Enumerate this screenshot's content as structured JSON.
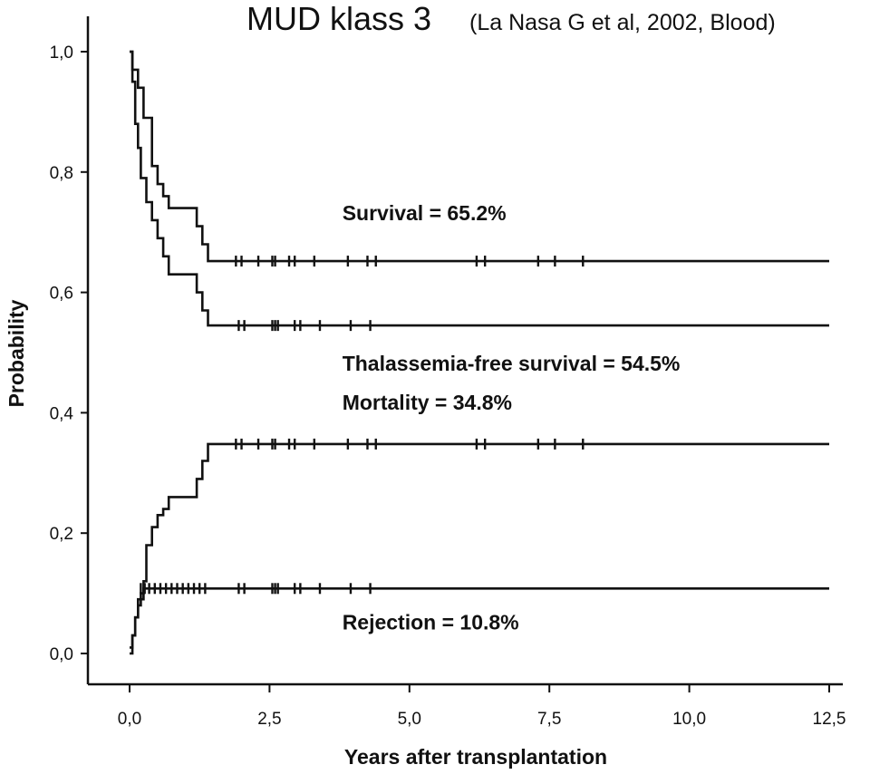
{
  "chart_data": {
    "type": "line",
    "title": "MUD klass 3",
    "subtitle": "(La Nasa G et al, 2002, Blood)",
    "xlabel": "Years after transplantation",
    "ylabel": "Probability",
    "xlim": [
      0,
      12.5
    ],
    "ylim": [
      0,
      1.0
    ],
    "x_ticks": [
      "0,0",
      "2,5",
      "5,0",
      "7,5",
      "10,0",
      "12,5"
    ],
    "y_ticks": [
      "0,0",
      "0,2",
      "0,4",
      "0,6",
      "0,8",
      "1,0"
    ],
    "grid": false,
    "legend": "none",
    "annotations": [
      {
        "text": "Survival = 65.2%",
        "x": 3.8,
        "y": 0.72
      },
      {
        "text": "Thalassemia-free survival = 54.5%",
        "x": 3.8,
        "y": 0.47
      },
      {
        "text": "Mortality = 34.8%",
        "x": 3.8,
        "y": 0.405
      },
      {
        "text": "Rejection = 10.8%",
        "x": 3.8,
        "y": 0.04
      }
    ],
    "series": [
      {
        "name": "Survival",
        "points": [
          [
            0,
            1.0
          ],
          [
            0.05,
            0.97
          ],
          [
            0.15,
            0.94
          ],
          [
            0.25,
            0.89
          ],
          [
            0.4,
            0.81
          ],
          [
            0.5,
            0.78
          ],
          [
            0.6,
            0.76
          ],
          [
            0.7,
            0.74
          ],
          [
            1.15,
            0.74
          ],
          [
            1.2,
            0.71
          ],
          [
            1.3,
            0.68
          ],
          [
            1.4,
            0.652
          ],
          [
            12.5,
            0.652
          ]
        ],
        "censor_x": [
          1.9,
          2.0,
          2.3,
          2.55,
          2.6,
          2.85,
          2.95,
          3.3,
          3.9,
          4.25,
          4.4,
          6.2,
          6.35,
          7.3,
          7.6,
          8.1
        ]
      },
      {
        "name": "Thalassemia-free survival",
        "points": [
          [
            0,
            1.0
          ],
          [
            0.05,
            0.95
          ],
          [
            0.1,
            0.88
          ],
          [
            0.15,
            0.84
          ],
          [
            0.2,
            0.79
          ],
          [
            0.3,
            0.75
          ],
          [
            0.4,
            0.72
          ],
          [
            0.5,
            0.69
          ],
          [
            0.6,
            0.66
          ],
          [
            0.7,
            0.63
          ],
          [
            1.1,
            0.63
          ],
          [
            1.2,
            0.6
          ],
          [
            1.3,
            0.57
          ],
          [
            1.4,
            0.545
          ],
          [
            12.5,
            0.545
          ]
        ],
        "censor_x": [
          1.95,
          2.05,
          2.55,
          2.6,
          2.65,
          2.95,
          3.05,
          3.4,
          3.95,
          4.3
        ]
      },
      {
        "name": "Mortality",
        "points": [
          [
            0,
            0
          ],
          [
            0.05,
            0.03
          ],
          [
            0.1,
            0.06
          ],
          [
            0.15,
            0.09
          ],
          [
            0.25,
            0.12
          ],
          [
            0.3,
            0.18
          ],
          [
            0.4,
            0.21
          ],
          [
            0.5,
            0.23
          ],
          [
            0.6,
            0.24
          ],
          [
            0.7,
            0.26
          ],
          [
            1.15,
            0.26
          ],
          [
            1.2,
            0.29
          ],
          [
            1.3,
            0.32
          ],
          [
            1.4,
            0.348
          ],
          [
            12.5,
            0.348
          ]
        ],
        "censor_x": [
          1.9,
          2.0,
          2.3,
          2.55,
          2.6,
          2.85,
          2.95,
          3.3,
          3.9,
          4.25,
          4.4,
          6.2,
          6.35,
          7.3,
          7.6,
          8.1
        ]
      },
      {
        "name": "Rejection",
        "points": [
          [
            0,
            0.01
          ],
          [
            0.05,
            0.03
          ],
          [
            0.1,
            0.06
          ],
          [
            0.15,
            0.08
          ],
          [
            0.2,
            0.1
          ],
          [
            0.25,
            0.108
          ],
          [
            12.5,
            0.108
          ]
        ],
        "censor_x": [
          0.2,
          0.27,
          0.35,
          0.45,
          0.55,
          0.65,
          0.75,
          0.85,
          0.95,
          1.05,
          1.15,
          1.25,
          1.35,
          1.95,
          2.05,
          2.55,
          2.6,
          2.65,
          2.95,
          3.05,
          3.4,
          3.95,
          4.3
        ]
      }
    ]
  }
}
